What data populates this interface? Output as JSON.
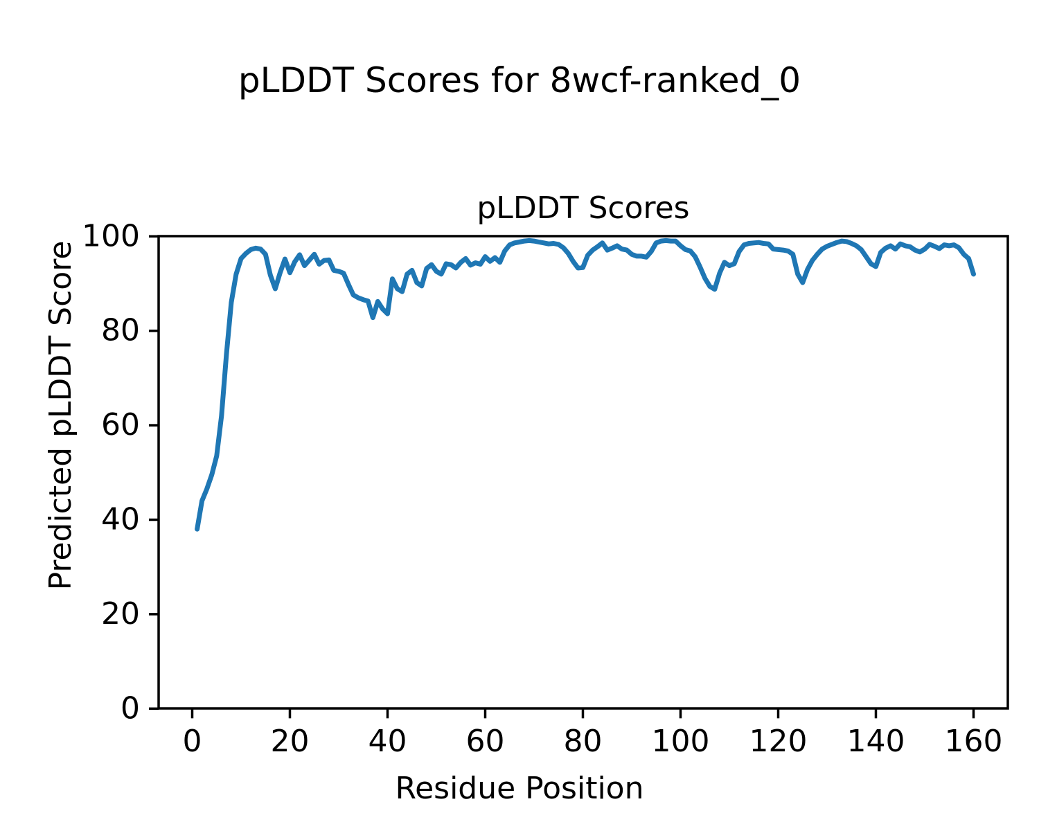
{
  "chart": {
    "suptitle": "pLDDT Scores for 8wcf-ranked_0",
    "title": "pLDDT Scores",
    "xlabel": "Residue Position",
    "ylabel": "Predicted pLDDT Score"
  },
  "chart_data": {
    "type": "line",
    "suptitle": "pLDDT Scores for 8wcf-ranked_0",
    "title": "pLDDT Scores",
    "xlabel": "Residue Position",
    "ylabel": "Predicted pLDDT Score",
    "grid": false,
    "legend_position": "none",
    "line_color": "#1f77b4",
    "spine_color": "#000000",
    "background_color": "#ffffff",
    "xlim": [
      -7,
      167
    ],
    "ylim": [
      0,
      100
    ],
    "x_ticks": [
      0,
      20,
      40,
      60,
      80,
      100,
      120,
      140,
      160
    ],
    "y_ticks": [
      0,
      20,
      40,
      60,
      80,
      100
    ],
    "series": [
      {
        "name": "pLDDT",
        "x_start": 1,
        "x_step": 1,
        "values": [
          38.0,
          44.0,
          46.5,
          49.5,
          53.5,
          62.0,
          75.0,
          86.0,
          92.0,
          95.3,
          96.4,
          97.2,
          97.5,
          97.3,
          96.2,
          91.8,
          88.9,
          92.3,
          95.2,
          92.3,
          94.6,
          96.1,
          93.8,
          95.0,
          96.2,
          94.1,
          94.9,
          95.0,
          92.8,
          92.6,
          92.2,
          89.8,
          87.6,
          87.0,
          86.6,
          86.3,
          82.8,
          86.2,
          84.6,
          83.6,
          91.0,
          88.9,
          88.3,
          92.0,
          92.8,
          90.2,
          89.5,
          93.2,
          94.0,
          92.6,
          92.0,
          94.2,
          94.0,
          93.3,
          94.5,
          95.3,
          93.9,
          94.4,
          94.1,
          95.7,
          94.7,
          95.5,
          94.5,
          96.9,
          98.2,
          98.6,
          98.8,
          99.0,
          99.1,
          99.0,
          98.8,
          98.6,
          98.4,
          98.5,
          98.3,
          97.6,
          96.4,
          94.7,
          93.3,
          93.4,
          96.0,
          97.1,
          97.8,
          98.6,
          97.1,
          97.5,
          98.0,
          97.3,
          97.1,
          96.2,
          95.8,
          95.8,
          95.6,
          96.8,
          98.6,
          99.0,
          99.1,
          99.0,
          99.0,
          98.0,
          97.2,
          96.9,
          95.7,
          93.5,
          91.1,
          89.4,
          88.8,
          92.2,
          94.5,
          93.8,
          94.2,
          96.8,
          98.2,
          98.5,
          98.6,
          98.7,
          98.5,
          98.4,
          97.3,
          97.2,
          97.1,
          96.9,
          96.2,
          92.0,
          90.2,
          93.0,
          94.9,
          96.2,
          97.3,
          97.9,
          98.3,
          98.7,
          99.0,
          98.9,
          98.5,
          98.0,
          97.2,
          95.7,
          94.2,
          93.6,
          96.6,
          97.5,
          98.0,
          97.3,
          98.4,
          98.0,
          97.8,
          97.1,
          96.7,
          97.3,
          98.3,
          97.9,
          97.4,
          98.2,
          98.0,
          98.2,
          97.6,
          96.2,
          95.3,
          92.0
        ]
      }
    ]
  }
}
